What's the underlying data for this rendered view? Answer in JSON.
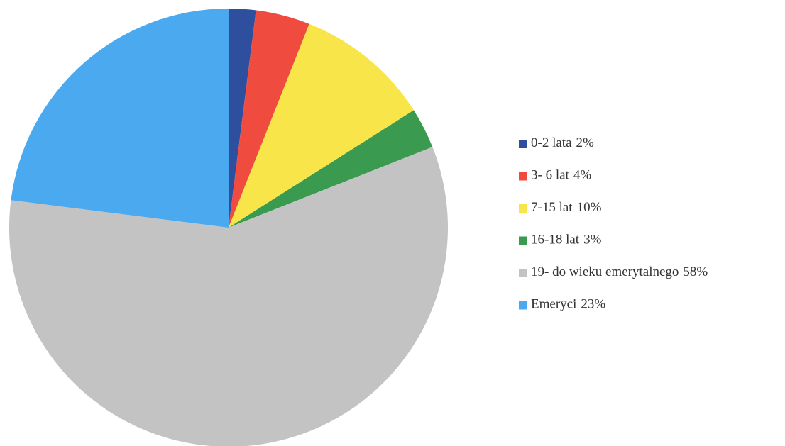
{
  "chart_data": {
    "type": "pie",
    "categories": [
      "0-2 lata",
      "3- 6 lat",
      "7-15 lat",
      "16-18 lat",
      "19- do wieku emerytalnego",
      "Emeryci"
    ],
    "values": [
      2,
      4,
      10,
      3,
      58,
      23
    ],
    "value_labels": [
      "2%",
      "4%",
      "10%",
      "3%",
      "58%",
      "23%"
    ],
    "colors": [
      "#2d4f9e",
      "#f04b3f",
      "#f8e54a",
      "#3a9a50",
      "#c3c3c3",
      "#4ba9f0"
    ],
    "legend": "right"
  }
}
